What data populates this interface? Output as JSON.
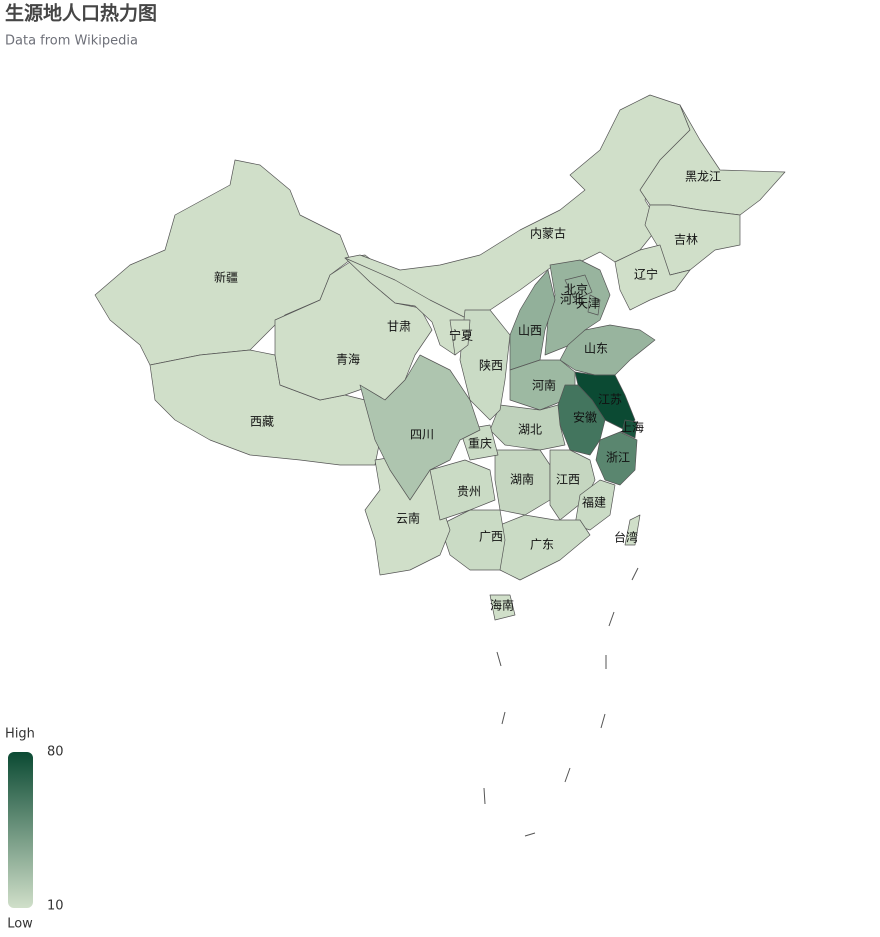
{
  "chart_data": {
    "type": "map",
    "title": "生源地人口热力图",
    "subtitle": "Data from Wikipedia",
    "regions": [
      {
        "name": "新疆",
        "value": 10
      },
      {
        "name": "西藏",
        "value": 10
      },
      {
        "name": "青海",
        "value": 10
      },
      {
        "name": "甘肃",
        "value": 10
      },
      {
        "name": "内蒙古",
        "value": 10
      },
      {
        "name": "黑龙江",
        "value": 10
      },
      {
        "name": "吉林",
        "value": 10
      },
      {
        "name": "辽宁",
        "value": 10
      },
      {
        "name": "河北",
        "value": 30
      },
      {
        "name": "北京",
        "value": 30
      },
      {
        "name": "天津",
        "value": 30
      },
      {
        "name": "山西",
        "value": 32
      },
      {
        "name": "山东",
        "value": 30
      },
      {
        "name": "河南",
        "value": 28
      },
      {
        "name": "江苏",
        "value": 80
      },
      {
        "name": "上海",
        "value": 75
      },
      {
        "name": "安徽",
        "value": 60
      },
      {
        "name": "浙江",
        "value": 52
      },
      {
        "name": "湖北",
        "value": 16
      },
      {
        "name": "湖南",
        "value": 14
      },
      {
        "name": "江西",
        "value": 14
      },
      {
        "name": "福建",
        "value": 12
      },
      {
        "name": "广东",
        "value": 12
      },
      {
        "name": "广西",
        "value": 12
      },
      {
        "name": "海南",
        "value": 10
      },
      {
        "name": "云南",
        "value": 10
      },
      {
        "name": "贵州",
        "value": 12
      },
      {
        "name": "重庆",
        "value": 12
      },
      {
        "name": "四川",
        "value": 22
      },
      {
        "name": "陕西",
        "value": 12
      },
      {
        "name": "宁夏",
        "value": 10
      },
      {
        "name": "台湾",
        "value": 10
      }
    ],
    "visual_map": {
      "min": 10,
      "max": 80,
      "high_text": "High",
      "low_text": "Low",
      "colors": [
        "#d0dfc9",
        "#0b4a33"
      ]
    }
  }
}
